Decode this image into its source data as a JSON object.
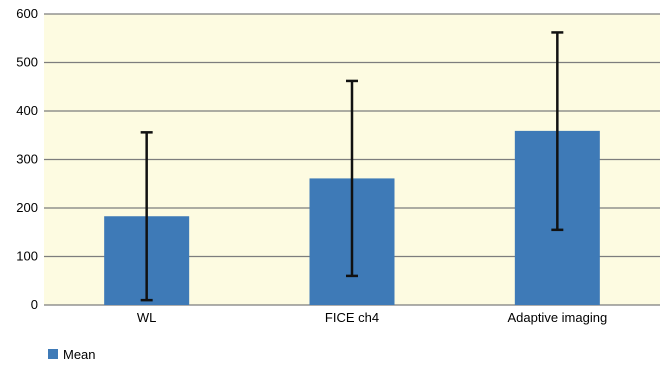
{
  "chart_data": {
    "type": "bar",
    "categories": [
      "WL",
      "FICE ch4",
      "Adaptive imaging"
    ],
    "series": [
      {
        "name": "Mean",
        "values": [
          183,
          261,
          359
        ],
        "error_low": [
          10,
          60,
          155
        ],
        "error_high": [
          356,
          462,
          562
        ]
      }
    ],
    "y_ticks": [
      "0",
      "100",
      "200",
      "300",
      "400",
      "500",
      "600"
    ],
    "ylim": [
      0,
      600
    ],
    "grid": true,
    "legend": "bottom-left",
    "colors": {
      "bar": "#3e7ab7",
      "plot_background": "#fdfbe1",
      "grid": "#7d7d7d",
      "error_bar": "#111111"
    }
  }
}
